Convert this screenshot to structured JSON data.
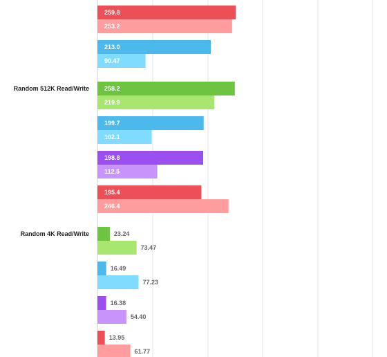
{
  "chart_data": {
    "type": "bar",
    "orientation": "horizontal",
    "grid": true,
    "categories": [
      {
        "label": "",
        "pairs": [
          {
            "color_pair": "red",
            "values": [
              259.8,
              253.2
            ]
          },
          {
            "color_pair": "blue",
            "values": [
              213.0,
              90.47
            ]
          }
        ]
      },
      {
        "label": "Random 512K Read/Write",
        "pairs": [
          {
            "color_pair": "green",
            "values": [
              258.2,
              219.9
            ]
          },
          {
            "color_pair": "blue",
            "values": [
              199.7,
              102.1
            ]
          },
          {
            "color_pair": "purple",
            "values": [
              198.8,
              112.5
            ]
          },
          {
            "color_pair": "red",
            "values": [
              195.4,
              246.4
            ]
          }
        ]
      },
      {
        "label": "Random 4K Read/Write",
        "pairs": [
          {
            "color_pair": "green",
            "values": [
              23.24,
              73.47
            ]
          },
          {
            "color_pair": "blue",
            "values": [
              16.49,
              77.23
            ]
          },
          {
            "color_pair": "purple",
            "values": [
              16.38,
              54.4
            ]
          },
          {
            "color_pair": "red",
            "values": [
              13.95,
              61.77
            ]
          }
        ]
      }
    ],
    "value_labels": [
      [
        "259.8",
        "253.2",
        "213.0",
        "90.47"
      ],
      [
        "258.2",
        "219.9",
        "199.7",
        "102.1",
        "198.8",
        "112.5",
        "195.4",
        "246.4"
      ],
      [
        "23.24",
        "73.47",
        "16.49",
        "77.23",
        "16.38",
        "54.40",
        "13.95",
        "61.77"
      ]
    ]
  },
  "colors": {
    "red": [
      "#ec4f55",
      "#ff9c9e"
    ],
    "blue": [
      "#4cb9ec",
      "#7fdcff"
    ],
    "green": [
      "#6cc440",
      "#a7e66f"
    ],
    "purple": [
      "#9b4ff0",
      "#c893fb"
    ]
  }
}
